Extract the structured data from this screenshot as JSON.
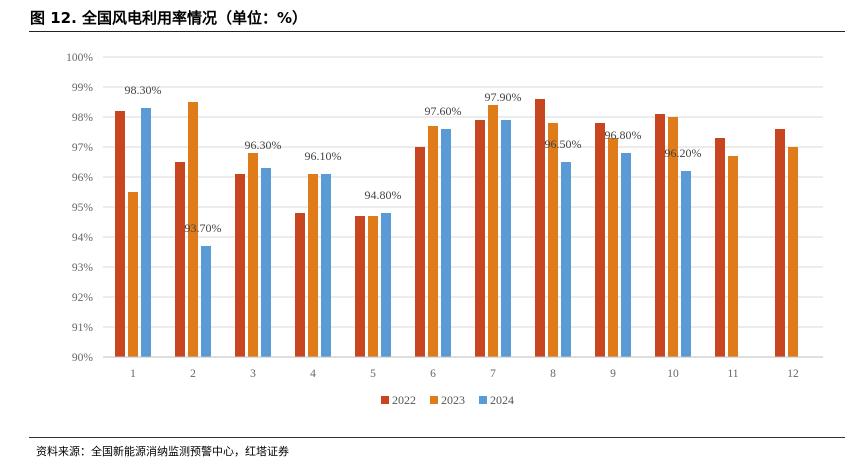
{
  "title": "图 12. 全国风电利用率情况（单位：%）",
  "source": "资料来源：全国新能源消纳监测预警中心，红塔证券",
  "colors": {
    "2022": "#c7461f",
    "2023": "#e07b1a",
    "2024": "#5b9bd5",
    "grid": "#d9d9d9",
    "axis": "#bfbfbf"
  },
  "chart_data": {
    "type": "bar",
    "categories": [
      "1",
      "2",
      "3",
      "4",
      "5",
      "6",
      "7",
      "8",
      "9",
      "10",
      "11",
      "12"
    ],
    "series": [
      {
        "name": "2022",
        "values": [
          98.2,
          96.5,
          96.1,
          94.8,
          94.7,
          97.0,
          97.9,
          98.6,
          97.8,
          98.1,
          97.3,
          97.6
        ]
      },
      {
        "name": "2023",
        "values": [
          95.5,
          98.5,
          96.8,
          96.1,
          94.7,
          97.7,
          98.4,
          97.8,
          97.3,
          98.0,
          96.7,
          97.0
        ]
      },
      {
        "name": "2024",
        "values": [
          98.3,
          93.7,
          96.3,
          96.1,
          94.8,
          97.6,
          97.9,
          96.5,
          96.8,
          96.2,
          null,
          null
        ]
      }
    ],
    "data_labels": {
      "series": "2024",
      "texts": [
        "98.30%",
        "93.70%",
        "96.30%",
        "96.10%",
        "94.80%",
        "97.60%",
        "97.90%",
        "96.50%",
        "96.80%",
        "96.20%"
      ]
    },
    "y_ticks": [
      "90%",
      "91%",
      "92%",
      "93%",
      "94%",
      "95%",
      "96%",
      "97%",
      "98%",
      "99%",
      "100%"
    ],
    "ylim": [
      90,
      100
    ],
    "grid": true,
    "legend": "bottom"
  }
}
